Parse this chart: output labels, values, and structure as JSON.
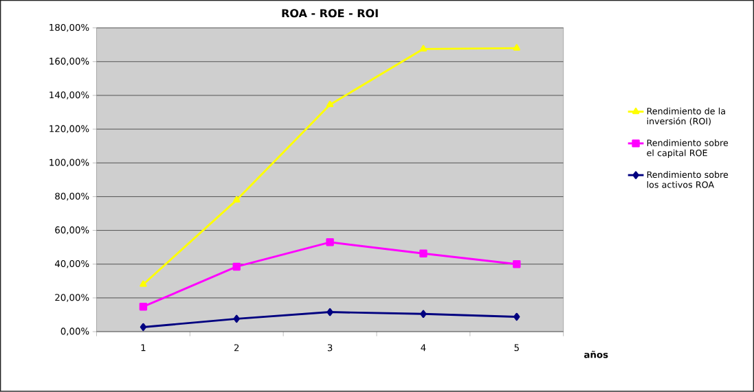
{
  "chart_data": {
    "type": "line",
    "title": "ROA - ROE - ROI",
    "xlabel": "años",
    "categories": [
      "1",
      "2",
      "3",
      "4",
      "5"
    ],
    "series": [
      {
        "name": "Rendimiento de la inversión (ROI)",
        "color": "#ffff00",
        "marker": "triangle",
        "values": [
          28,
          78,
          134.5,
          167.5,
          168
        ]
      },
      {
        "name": "Rendimiento sobre el capital ROE",
        "color": "#ff00ff",
        "marker": "square",
        "values": [
          14.8,
          38.5,
          53,
          46.3,
          40
        ]
      },
      {
        "name": "Rendimiento sobre los activos ROA",
        "color": "#000080",
        "marker": "diamond",
        "values": [
          2.7,
          7.6,
          11.6,
          10.5,
          8.8
        ]
      }
    ],
    "ylim": [
      0,
      180
    ],
    "yticks": [
      {
        "value": 0,
        "label": "0,00%"
      },
      {
        "value": 20,
        "label": "20,00%"
      },
      {
        "value": 40,
        "label": "40,00%"
      },
      {
        "value": 60,
        "label": "60,00%"
      },
      {
        "value": 80,
        "label": "80,00%"
      },
      {
        "value": 100,
        "label": "100,00%"
      },
      {
        "value": 120,
        "label": "120,00%"
      },
      {
        "value": 140,
        "label": "140,00%"
      },
      {
        "value": 160,
        "label": "160,00%"
      },
      {
        "value": 180,
        "label": "180,00%"
      }
    ],
    "grid": "y",
    "legend": "right"
  }
}
